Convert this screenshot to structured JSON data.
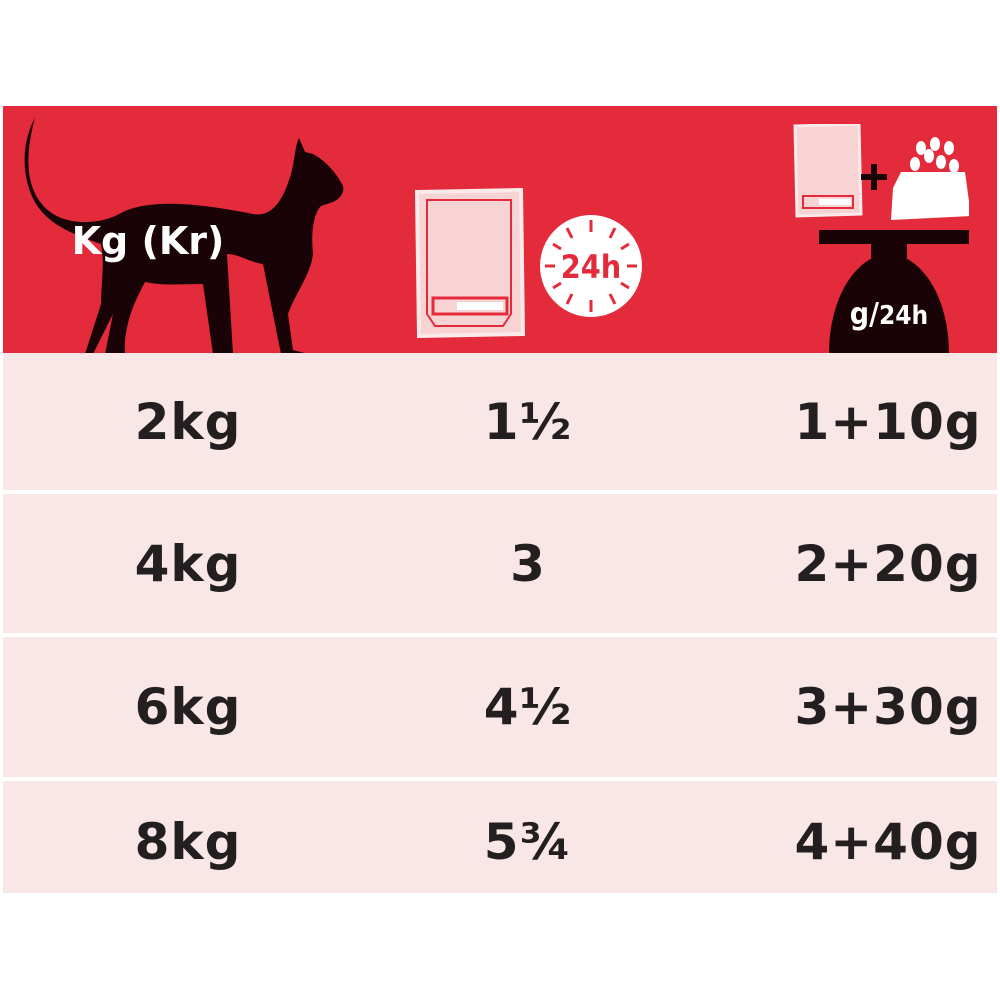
{
  "colors": {
    "header_bg": "#e32b3b",
    "row_bg": "#f9e6e6",
    "text": "#231f20",
    "silhouette": "#1a0306"
  },
  "header": {
    "weight_label": "Kg (Kr)",
    "pouch_icon": "pouch-icon",
    "clock_label": "24h",
    "mixed_label_g": "g",
    "mixed_label_slash": "/",
    "mixed_label_24h": "24h"
  },
  "rows": [
    {
      "weight": "2kg",
      "pouches": "1½",
      "mixed": "1+10g"
    },
    {
      "weight": "4kg",
      "pouches": "3",
      "mixed": "2+20g"
    },
    {
      "weight": "6kg",
      "pouches": "4½",
      "mixed": "3+30g"
    },
    {
      "weight": "8kg",
      "pouches": "5¾",
      "mixed": "4+40g"
    }
  ]
}
